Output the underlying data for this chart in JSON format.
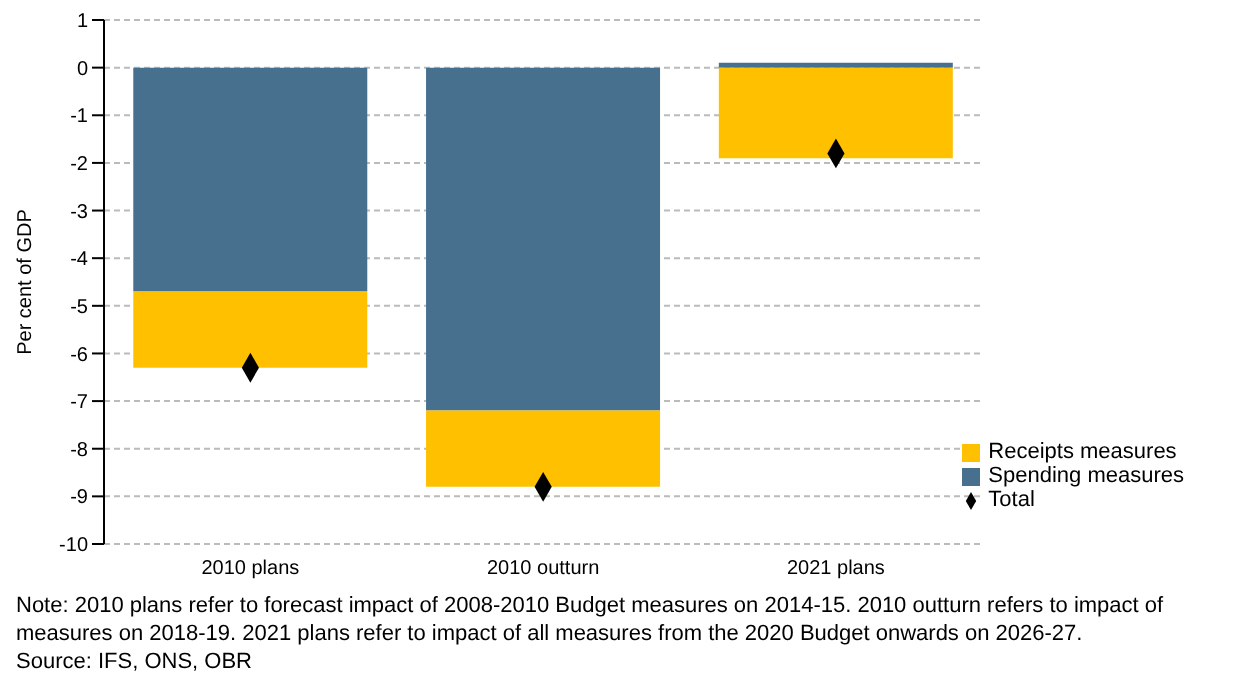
{
  "chart_data": {
    "type": "bar",
    "ylabel": "Per cent of GDP",
    "categories": [
      "2010 plans",
      "2010 outturn",
      "2021 plans"
    ],
    "series": [
      {
        "name": "Spending measures",
        "color": "#47708f",
        "values": [
          -4.7,
          -7.2,
          0.1
        ]
      },
      {
        "name": "Receipts measures",
        "color": "#ffc000",
        "values": [
          -1.6,
          -1.6,
          -1.9
        ]
      },
      {
        "name": "Total",
        "type": "scatter",
        "color": "#000000",
        "marker": "diamond",
        "values": [
          -6.3,
          -8.8,
          -1.8
        ]
      }
    ],
    "stacked": true,
    "ylim": [
      -10,
      1
    ],
    "yticks": [
      -10,
      -9,
      -8,
      -7,
      -6,
      -5,
      -4,
      -3,
      -2,
      -1,
      0,
      1
    ],
    "grid": "y",
    "legend": "bottom right",
    "annotations": [
      "Note: 2010 plans refer to forecast impact of 2008-2010 Budget measures on 2014-15. 2010 outturn refers to impact of measures on 2018-19. 2021 plans refer to impact of all measures from the 2020 Budget onwards on 2026-27.",
      "Source: IFS, ONS, OBR"
    ]
  }
}
